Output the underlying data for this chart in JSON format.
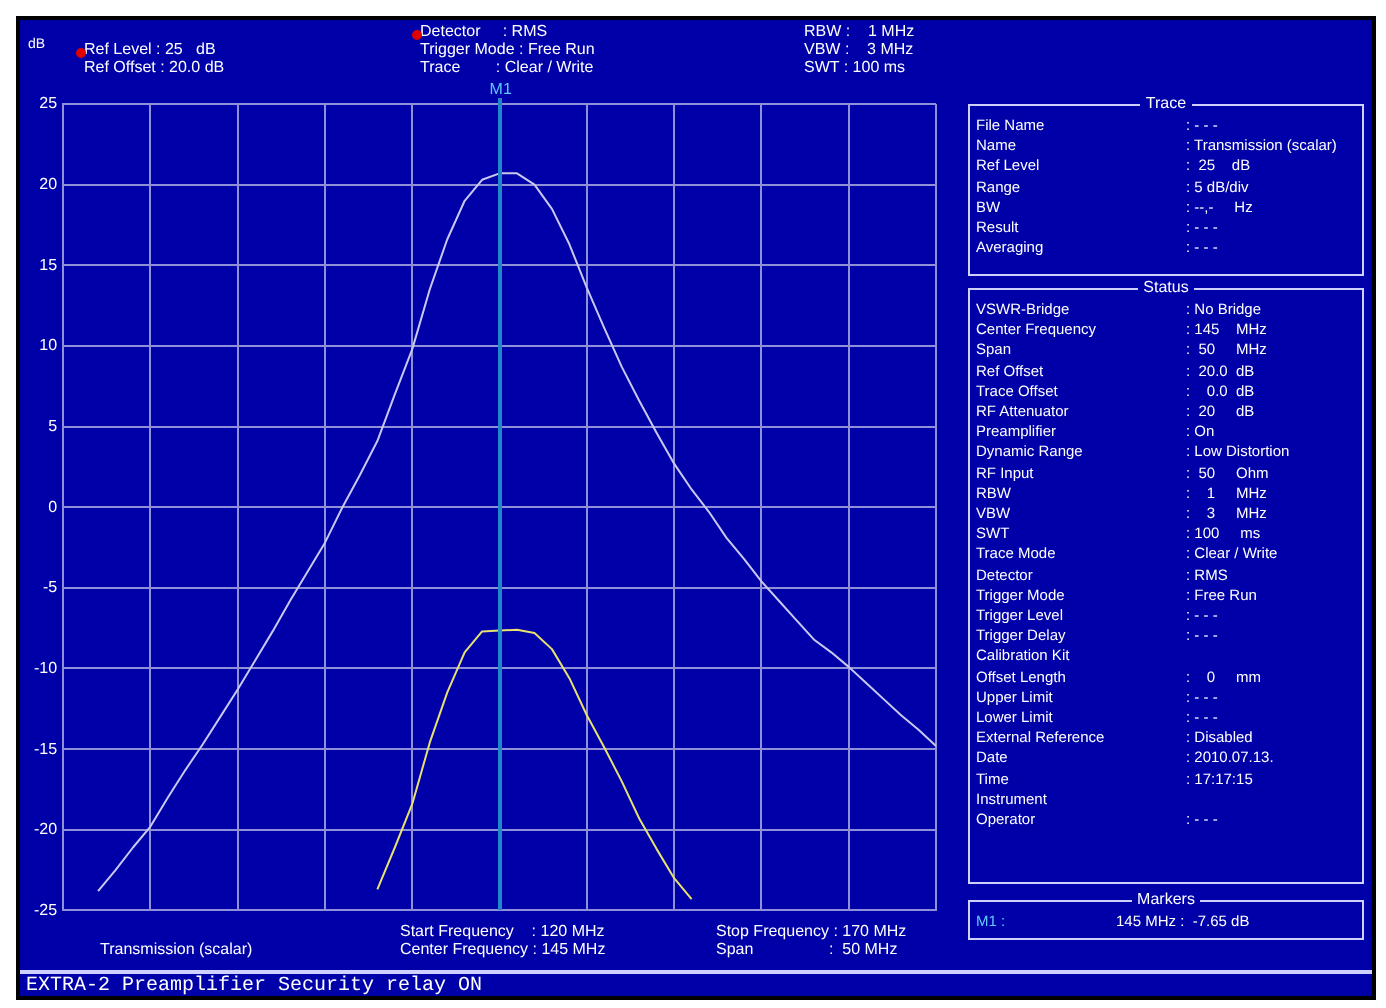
{
  "chart_data": [
    {
      "type": "line",
      "ylabel": "dB",
      "categories": [
        null,
        null,
        null,
        null,
        null,
        null,
        null,
        null,
        null,
        null,
        null,
        null,
        null,
        null,
        null,
        null,
        null,
        null,
        null,
        null,
        null,
        null,
        null,
        null,
        null,
        null,
        null,
        null,
        null,
        null,
        null,
        null,
        null,
        null,
        null,
        null,
        null,
        null,
        null,
        null,
        null,
        null,
        null,
        null,
        null,
        null,
        null,
        null,
        null,
        null,
        null
      ],
      "ylim": [
        -25,
        25
      ],
      "yticks": [
        -25,
        -20,
        -15,
        -10,
        -5,
        0,
        5,
        10,
        15,
        20,
        25
      ],
      "tick_labels": "y",
      "grid": true,
      "marker": "none",
      "line_style": "solid",
      "series": [
        {
          "color": "#c8c8f0",
          "values": [
            null,
            null,
            -23.8,
            -22.5,
            -21.1,
            -19.8,
            -18.0,
            -16.3,
            -14.7,
            -13.0,
            -11.3,
            -9.5,
            -7.7,
            -5.8,
            -4.0,
            -2.2,
            0.0,
            2.0,
            4.1,
            7.0,
            9.8,
            13.5,
            16.6,
            19.0,
            20.3,
            20.7,
            20.7,
            20.0,
            18.5,
            16.3,
            13.6,
            11.1,
            8.7,
            6.6,
            4.6,
            2.7,
            1.1,
            -0.3,
            -1.9,
            -3.2,
            -4.6,
            -5.8,
            -7.0,
            -8.2,
            -9.0,
            -9.9,
            -10.9,
            -11.9,
            -12.9,
            -13.8,
            -14.8
          ]
        },
        {
          "color": "#e8e070",
          "values": [
            null,
            null,
            null,
            null,
            null,
            null,
            null,
            null,
            null,
            null,
            null,
            null,
            null,
            null,
            null,
            null,
            null,
            null,
            -23.7,
            -21.1,
            -18.4,
            -14.6,
            -11.5,
            -9.0,
            -7.7,
            -7.65,
            -7.6,
            -7.8,
            -8.8,
            -10.6,
            -12.9,
            -14.9,
            -17.0,
            -19.3,
            -21.2,
            -23.0,
            -24.3,
            null,
            null,
            null,
            null,
            null,
            null,
            null,
            null,
            null,
            null,
            null,
            null,
            null,
            null
          ]
        }
      ],
      "annotations": [
        "Ref Level : 25   dB",
        "Ref Offset : 20.0 dB",
        "Detector     : RMS",
        "Trigger Mode : Free Run",
        "Trace        : Clear / Write",
        "RBW :    1 MHz",
        "VBW :    3 MHz",
        "SWT : 100 ms",
        "Transmission (scalar)",
        "Start Frequency    : 120 MHz",
        "Center Frequency : 145 MHz",
        "Stop Frequency : 170 MHz",
        "Span                 :  50 MHz",
        "EXTRA-2 Preamplifier Security relay ON",
        "M1"
      ]
    },
    {
      "type": "other",
      "title": "Trace",
      "annotations": [
        "File Name",
        ": - - -",
        "Name",
        ": Transmission (scalar)",
        "Ref Level",
        ":  25    dB",
        "Range",
        ": 5 dB/div",
        "BW",
        ": --,-     Hz",
        "Result",
        ": - - -",
        "Averaging",
        ": - - -"
      ]
    },
    {
      "type": "other",
      "title": "Status",
      "annotations": [
        "VSWR-Bridge",
        ": No Bridge",
        "Center Frequency",
        ": 145    MHz",
        "Span",
        ":  50     MHz",
        "Ref Offset",
        ":  20.0  dB",
        "Trace Offset",
        ":    0.0  dB",
        "RF Attenuator",
        ":  20     dB",
        "Preamplifier",
        ": On",
        "Dynamic Range",
        ": Low Distortion",
        "RF Input",
        ":  50     Ohm",
        "RBW",
        ":    1     MHz",
        "VBW",
        ":    3     MHz",
        "SWT",
        ": 100     ms",
        "Trace Mode",
        ": Clear / Write",
        "Detector",
        ": RMS",
        "Trigger Mode",
        ": Free Run",
        "Trigger Level",
        ": - - -",
        "Trigger Delay",
        ": - - -",
        "Calibration Kit",
        null,
        "Offset Length",
        ":    0     mm",
        "Upper Limit",
        ": - - -",
        "Lower Limit",
        ": - - -",
        "External Reference",
        ": Disabled",
        "Date",
        ": 2010.07.13.",
        "Time",
        ": 17:17:15",
        "Instrument",
        null,
        "Operator",
        ": - - -"
      ]
    },
    {
      "type": "other",
      "title": "Markers",
      "annotations": [
        "M1 :",
        "145 MHz :  -7.65 dB"
      ]
    }
  ]
}
